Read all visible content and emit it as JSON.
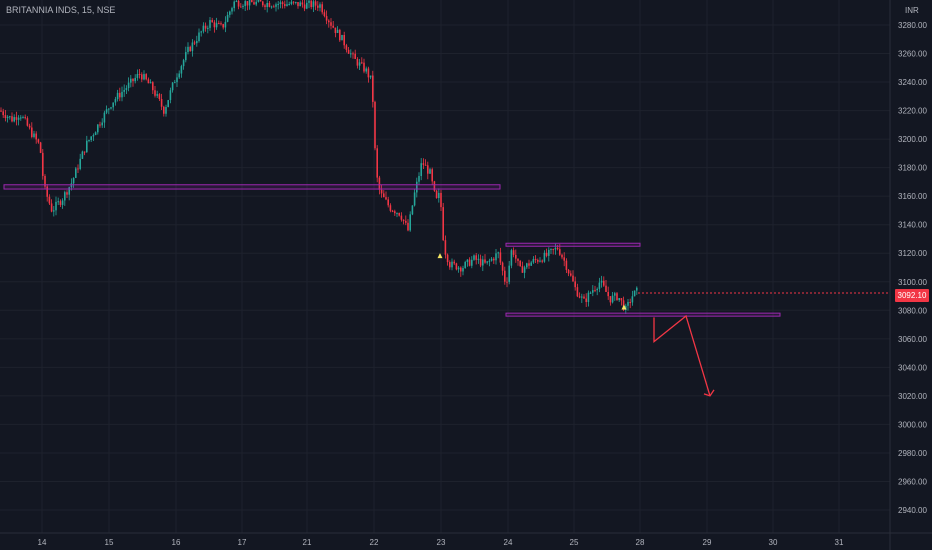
{
  "header": {
    "symbol": "BRITANNIA INDS, 15, NSE",
    "currency": "INR"
  },
  "last_price": "3092.10",
  "colors": {
    "background": "#131722",
    "up": "#26a69a",
    "down": "#f23645",
    "zone": "#9c27b0",
    "projection": "#f23645",
    "grid": "#1e222d",
    "axis_text": "#b2b5be"
  },
  "chart_data": {
    "type": "candlestick",
    "interval": "15",
    "y_ticks": [
      "3280.00",
      "3260.00",
      "3240.00",
      "3220.00",
      "3200.00",
      "3180.00",
      "3160.00",
      "3140.00",
      "3120.00",
      "3100.00",
      "3080.00",
      "3060.00",
      "3040.00",
      "3020.00",
      "3000.00",
      "2980.00",
      "2960.00",
      "2940.00"
    ],
    "x_ticks": [
      "14",
      "15",
      "16",
      "17",
      "21",
      "22",
      "23",
      "24",
      "25",
      "28",
      "29",
      "30",
      "31"
    ],
    "ylim": [
      2930,
      3292
    ],
    "price_path": [
      {
        "x": 0,
        "y": 3220
      },
      {
        "x": 12,
        "y": 3214
      },
      {
        "x": 20,
        "y": 3218
      },
      {
        "x": 30,
        "y": 3206
      },
      {
        "x": 40,
        "y": 3195
      },
      {
        "x": 44,
        "y": 3166
      },
      {
        "x": 52,
        "y": 3150
      },
      {
        "x": 62,
        "y": 3158
      },
      {
        "x": 72,
        "y": 3170
      },
      {
        "x": 86,
        "y": 3196
      },
      {
        "x": 100,
        "y": 3212
      },
      {
        "x": 112,
        "y": 3226
      },
      {
        "x": 126,
        "y": 3236
      },
      {
        "x": 140,
        "y": 3246
      },
      {
        "x": 152,
        "y": 3236
      },
      {
        "x": 164,
        "y": 3220
      },
      {
        "x": 176,
        "y": 3244
      },
      {
        "x": 188,
        "y": 3262
      },
      {
        "x": 200,
        "y": 3274
      },
      {
        "x": 210,
        "y": 3282
      },
      {
        "x": 222,
        "y": 3278
      },
      {
        "x": 234,
        "y": 3296
      },
      {
        "x": 320,
        "y": 3294
      },
      {
        "x": 330,
        "y": 3282
      },
      {
        "x": 342,
        "y": 3270
      },
      {
        "x": 354,
        "y": 3256
      },
      {
        "x": 366,
        "y": 3248
      },
      {
        "x": 372,
        "y": 3240
      },
      {
        "x": 376,
        "y": 3176
      },
      {
        "x": 380,
        "y": 3162
      },
      {
        "x": 390,
        "y": 3152
      },
      {
        "x": 400,
        "y": 3148
      },
      {
        "x": 408,
        "y": 3136
      },
      {
        "x": 414,
        "y": 3160
      },
      {
        "x": 422,
        "y": 3184
      },
      {
        "x": 430,
        "y": 3176
      },
      {
        "x": 436,
        "y": 3156
      },
      {
        "x": 440,
        "y": 3162
      },
      {
        "x": 444,
        "y": 3124
      },
      {
        "x": 450,
        "y": 3112
      },
      {
        "x": 462,
        "y": 3110
      },
      {
        "x": 474,
        "y": 3116
      },
      {
        "x": 486,
        "y": 3112
      },
      {
        "x": 498,
        "y": 3120
      },
      {
        "x": 506,
        "y": 3098
      },
      {
        "x": 512,
        "y": 3124
      },
      {
        "x": 520,
        "y": 3108
      },
      {
        "x": 532,
        "y": 3114
      },
      {
        "x": 546,
        "y": 3118
      },
      {
        "x": 558,
        "y": 3124
      },
      {
        "x": 566,
        "y": 3112
      },
      {
        "x": 576,
        "y": 3094
      },
      {
        "x": 584,
        "y": 3086
      },
      {
        "x": 592,
        "y": 3094
      },
      {
        "x": 600,
        "y": 3100
      },
      {
        "x": 610,
        "y": 3088
      },
      {
        "x": 618,
        "y": 3090
      },
      {
        "x": 626,
        "y": 3080
      },
      {
        "x": 632,
        "y": 3090
      },
      {
        "x": 638,
        "y": 3094
      }
    ],
    "zones": [
      {
        "from_x": 4,
        "to_x": 500,
        "price_low": 3165,
        "price_high": 3168
      },
      {
        "from_x": 506,
        "to_x": 640,
        "price_low": 3125,
        "price_high": 3127
      },
      {
        "from_x": 506,
        "to_x": 780,
        "price_low": 3076,
        "price_high": 3078
      }
    ],
    "projection": [
      {
        "x": 654,
        "y": 3075
      },
      {
        "x": 654,
        "y": 3058
      },
      {
        "x": 686,
        "y": 3076
      },
      {
        "x": 710,
        "y": 3020
      }
    ],
    "markers": [
      {
        "x": 440,
        "y": 3118
      },
      {
        "x": 624,
        "y": 3082
      }
    ]
  }
}
